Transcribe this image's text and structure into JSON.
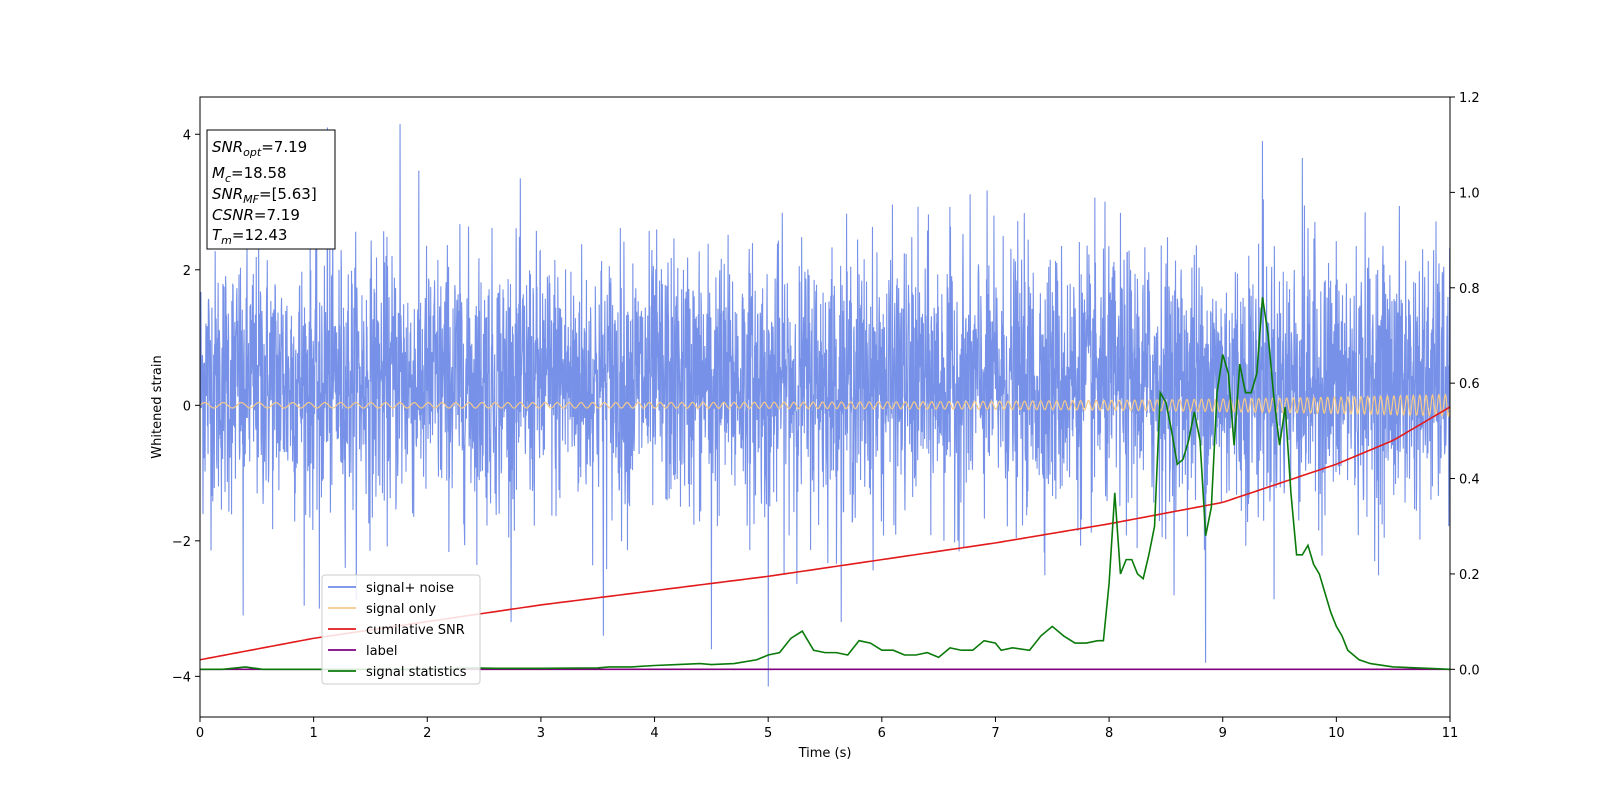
{
  "chart_data": {
    "type": "line",
    "xlabel": "Time (s)",
    "ylabel": "Whitened strain",
    "xlim": [
      0,
      11
    ],
    "ylim": [
      -4.6,
      4.55
    ],
    "y2lim": [
      -0.1,
      1.2
    ],
    "xticks": [
      "0",
      "1",
      "2",
      "3",
      "4",
      "5",
      "6",
      "7",
      "8",
      "9",
      "10",
      "11"
    ],
    "yticks": [
      "4",
      "2",
      "0",
      "−2",
      "−4"
    ],
    "yticks_values": [
      4,
      2,
      0,
      -2,
      -4
    ],
    "y2ticks": [
      "1.2",
      "1.0",
      "0.8",
      "0.6",
      "0.4",
      "0.2",
      "0.0"
    ],
    "y2ticks_values": [
      1.2,
      1.0,
      0.8,
      0.6,
      0.4,
      0.2,
      0.0
    ],
    "legend": {
      "position": "lower-left",
      "entries": [
        "signal+ noise",
        "signal only",
        "cumilative SNR",
        "label",
        "signal statistics"
      ]
    },
    "annotation": {
      "lines": [
        {
          "main": "SNR",
          "sub": "opt",
          "rest": "=7.19"
        },
        {
          "main": "M",
          "sub": "c",
          "rest": "=18.58"
        },
        {
          "main": "SNR",
          "sub": "MF",
          "rest": "=[5.63]"
        },
        {
          "main": "CSNR",
          "sub": "",
          "rest": "=7.19"
        },
        {
          "main": "T",
          "sub": "m",
          "rest": "=12.43"
        }
      ]
    },
    "series": [
      {
        "name": "signal+ noise",
        "color": "#6f8be6",
        "axis": "left",
        "noise_std": 0.95,
        "noise_min": -3.2,
        "noise_max": 4.1,
        "spikes": [
          [
            1.76,
            4.15
          ],
          [
            1.12,
            4.1
          ],
          [
            9.35,
            3.9
          ],
          [
            5.0,
            -4.15
          ],
          [
            8.85,
            -3.8
          ],
          [
            4.5,
            -3.6
          ],
          [
            1.05,
            -3.0
          ],
          [
            0.38,
            -3.1
          ],
          [
            3.55,
            -3.4
          ],
          [
            9.7,
            3.65
          ]
        ]
      },
      {
        "name": "signal only",
        "color": "#f5c98a",
        "axis": "left",
        "start_amp": 0.04,
        "end_amp": 0.16
      },
      {
        "name": "cumilative SNR",
        "color": "#e31a1c",
        "axis": "right",
        "x": [
          0,
          1,
          2,
          3,
          4,
          5,
          6,
          7,
          8,
          9,
          10,
          10.5,
          11
        ],
        "y": [
          0.02,
          0.065,
          0.1,
          0.135,
          0.165,
          0.195,
          0.23,
          0.265,
          0.305,
          0.35,
          0.43,
          0.48,
          0.55
        ]
      },
      {
        "name": "label",
        "color": "#800080",
        "axis": "right",
        "x": [
          0,
          11
        ],
        "y": [
          0.0,
          0.0
        ]
      },
      {
        "name": "signal statistics",
        "color": "#0a7a0a",
        "axis": "right",
        "x": [
          0,
          0.2,
          0.4,
          0.55,
          1.0,
          2.0,
          2.4,
          2.6,
          3.0,
          3.5,
          3.6,
          3.8,
          4.0,
          4.2,
          4.4,
          4.5,
          4.7,
          4.9,
          5.0,
          5.1,
          5.2,
          5.3,
          5.4,
          5.5,
          5.6,
          5.7,
          5.8,
          5.9,
          6.0,
          6.1,
          6.2,
          6.3,
          6.4,
          6.5,
          6.6,
          6.7,
          6.8,
          6.9,
          7.0,
          7.05,
          7.15,
          7.3,
          7.4,
          7.5,
          7.6,
          7.7,
          7.8,
          7.9,
          7.95,
          8.0,
          8.05,
          8.1,
          8.15,
          8.2,
          8.25,
          8.3,
          8.35,
          8.4,
          8.45,
          8.5,
          8.55,
          8.6,
          8.65,
          8.7,
          8.75,
          8.8,
          8.85,
          8.9,
          8.95,
          9.0,
          9.05,
          9.1,
          9.15,
          9.2,
          9.25,
          9.3,
          9.35,
          9.4,
          9.45,
          9.5,
          9.55,
          9.6,
          9.65,
          9.7,
          9.75,
          9.8,
          9.85,
          9.9,
          9.95,
          10.0,
          10.05,
          10.1,
          10.15,
          10.2,
          10.3,
          10.5,
          10.8,
          11.0
        ],
        "y": [
          0.0,
          0.0,
          0.005,
          0.0,
          0.0,
          0.0,
          0.003,
          0.002,
          0.002,
          0.003,
          0.005,
          0.005,
          0.008,
          0.01,
          0.012,
          0.01,
          0.012,
          0.02,
          0.03,
          0.035,
          0.065,
          0.08,
          0.04,
          0.035,
          0.035,
          0.03,
          0.06,
          0.055,
          0.04,
          0.04,
          0.03,
          0.03,
          0.035,
          0.025,
          0.045,
          0.04,
          0.04,
          0.06,
          0.055,
          0.04,
          0.045,
          0.04,
          0.07,
          0.09,
          0.07,
          0.055,
          0.055,
          0.06,
          0.06,
          0.18,
          0.37,
          0.2,
          0.23,
          0.23,
          0.2,
          0.19,
          0.24,
          0.3,
          0.58,
          0.56,
          0.5,
          0.43,
          0.44,
          0.48,
          0.54,
          0.48,
          0.28,
          0.34,
          0.58,
          0.66,
          0.62,
          0.47,
          0.64,
          0.58,
          0.58,
          0.62,
          0.78,
          0.7,
          0.57,
          0.47,
          0.55,
          0.37,
          0.24,
          0.24,
          0.26,
          0.22,
          0.2,
          0.16,
          0.12,
          0.09,
          0.07,
          0.04,
          0.03,
          0.02,
          0.012,
          0.005,
          0.002,
          0.0
        ]
      }
    ]
  }
}
